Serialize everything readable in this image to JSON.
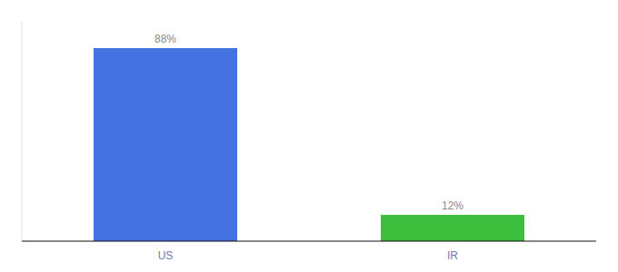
{
  "chart_data": {
    "type": "bar",
    "categories": [
      "US",
      "IR"
    ],
    "values": [
      88,
      12
    ],
    "value_labels": [
      "88%",
      "12%"
    ],
    "colors": [
      "#4472e0",
      "#3dbf3d"
    ],
    "ylim": [
      0,
      100
    ],
    "data_labels": true,
    "tick_labels": "x",
    "grid": false
  }
}
